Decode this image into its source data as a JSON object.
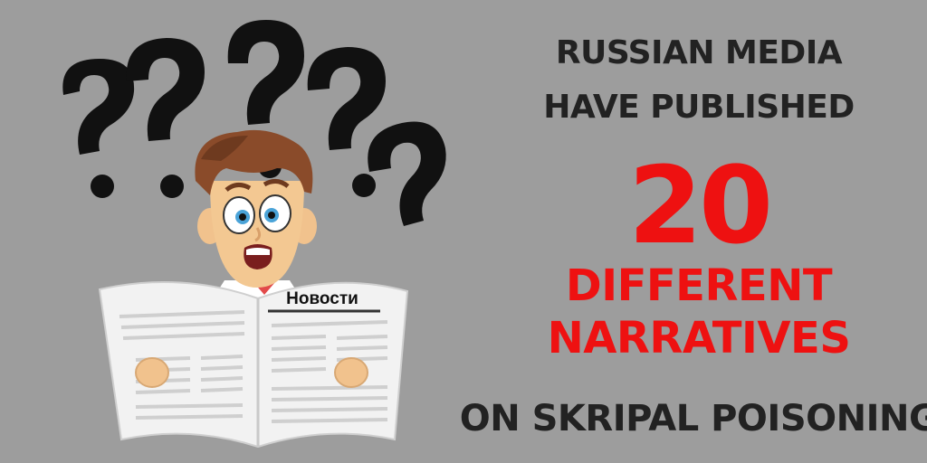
{
  "headline": {
    "line1": "RUSSIAN MEDIA",
    "line2": "HAVE PUBLISHED",
    "number": "20",
    "line4": "DIFFERENT",
    "line5": "NARRATIVES",
    "line6": "ON SKRIPAL POISONING"
  },
  "newspaper": {
    "masthead": "Новости"
  },
  "colors": {
    "background": "#9d9d9d",
    "dark_text": "#222222",
    "accent_red": "#ee1111"
  },
  "icons": [
    "question-mark-icon",
    "surprised-man-illustration",
    "newspaper-icon"
  ]
}
